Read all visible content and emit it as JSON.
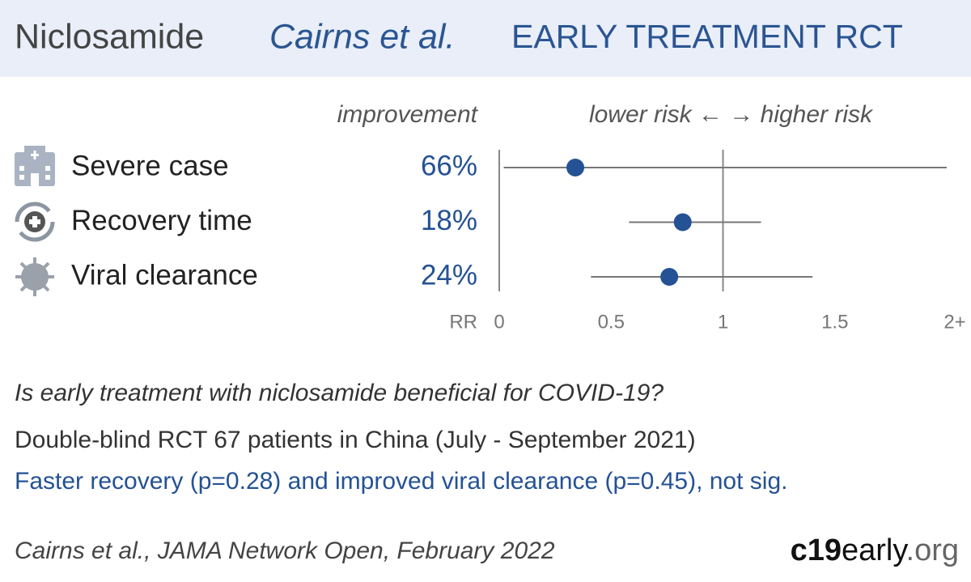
{
  "header": {
    "drug": "Niclosamide",
    "study": "Cairns et al.",
    "kind": "EARLY TREATMENT RCT"
  },
  "chart_data": {
    "type": "forest",
    "improvement_header": "improvement",
    "direction_header": "lower risk ← → higher risk",
    "x_label": "RR",
    "categories": [
      "Severe case",
      "Recovery time",
      "Viral clearance"
    ],
    "improvement": [
      "66%",
      "18%",
      "24%"
    ],
    "values": [
      0.34,
      0.82,
      0.76
    ],
    "ci_low": [
      0.02,
      0.58,
      0.41
    ],
    "ci_high": [
      2,
      1.17,
      1.4
    ],
    "color": "#245294",
    "xlim": [
      0,
      2
    ],
    "xticks": [
      0,
      0.5,
      1,
      1.5,
      {
        "value": 2,
        "label": "2+"
      }
    ],
    "reference": 1
  },
  "summary": {
    "question": "Is early treatment with niclosamide beneficial for COVID-19?",
    "design": "Double-blind RCT 67 patients in China (July - September 2021)",
    "result": "Faster recovery (p=0.28) and improved viral clearance (p=0.45), not sig."
  },
  "footer": {
    "citation": "Cairns et al., JAMA Network Open, February 2022",
    "brand": [
      "c19",
      "early",
      ".org"
    ]
  }
}
